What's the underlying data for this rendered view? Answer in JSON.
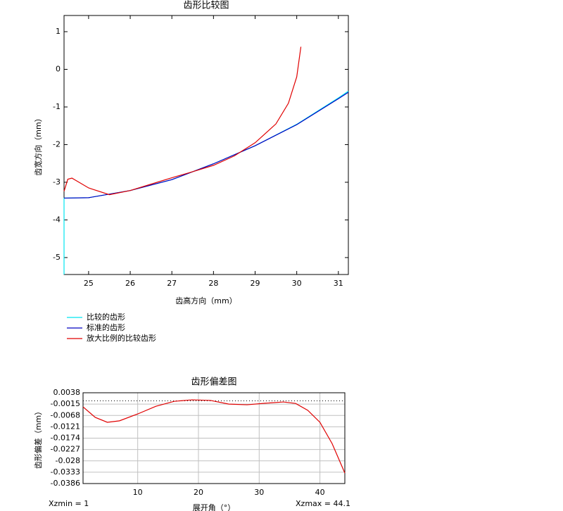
{
  "chart_data": [
    {
      "type": "line",
      "title": "齿形比较图",
      "x_label": "齿高方向（mm）",
      "y_label": "齿宽方向（mm）",
      "xlim": [
        24.41,
        31.24
      ],
      "ylim": [
        -5.45,
        1.43
      ],
      "xticks": [
        25,
        26,
        27,
        28,
        29,
        30,
        31
      ],
      "yticks": [
        -5,
        -4,
        -3,
        -2,
        -1,
        0,
        1
      ],
      "grid": false,
      "legend": "below",
      "series": [
        {
          "name": "比较的齿形",
          "color": "#00e5f0",
          "x": [
            24.41,
            24.41,
            25,
            26,
            27,
            28,
            29,
            30,
            31,
            31.24
          ],
          "values": [
            -5.45,
            -3.42,
            -3.41,
            -3.22,
            -2.93,
            -2.51,
            -2.03,
            -1.46,
            -0.76,
            -0.58
          ]
        },
        {
          "name": "标准的齿形",
          "color": "#0000c0",
          "x": [
            24.41,
            25,
            26,
            27,
            28,
            29,
            30,
            31,
            31.24
          ],
          "values": [
            -3.42,
            -3.41,
            -3.22,
            -2.93,
            -2.51,
            -2.03,
            -1.47,
            -0.78,
            -0.61
          ]
        },
        {
          "name": "放大比例的比较齿形",
          "color": "#e00000",
          "x": [
            24.41,
            24.5,
            24.6,
            24.8,
            25,
            25.5,
            26,
            26.5,
            27,
            27.5,
            28,
            28.5,
            29,
            29.5,
            29.8,
            30,
            30.1
          ],
          "values": [
            -3.24,
            -2.92,
            -2.89,
            -3.02,
            -3.15,
            -3.33,
            -3.22,
            -3.05,
            -2.88,
            -2.72,
            -2.55,
            -2.3,
            -1.95,
            -1.45,
            -0.9,
            -0.2,
            0.6
          ]
        }
      ]
    },
    {
      "type": "line",
      "title": "齿形偏差图",
      "x_label": "展开角（°）",
      "y_label": "齿形偏差（mm）",
      "xlim": [
        1,
        44.1
      ],
      "ylim": [
        -0.0386,
        0.0038
      ],
      "xticks": [
        10,
        20,
        30,
        40
      ],
      "yticks": [
        -0.0386,
        -0.0333,
        -0.028,
        -0.0227,
        -0.0174,
        -0.0121,
        -0.0068,
        -0.0015,
        0.0038
      ],
      "grid": true,
      "annotations": [
        "Xzmin = 1",
        "Xzmax = 44.1"
      ],
      "series": [
        {
          "color": "#e00000",
          "x": [
            1,
            3,
            5,
            7,
            10,
            13,
            16,
            19,
            22,
            25,
            28,
            31,
            34,
            36,
            38,
            40,
            42,
            44.1
          ],
          "values": [
            -0.0028,
            -0.0077,
            -0.01,
            -0.0093,
            -0.0061,
            -0.0025,
            -0.0002,
            0.0005,
            0.0002,
            -0.0015,
            -0.0018,
            -0.0011,
            -0.0005,
            -0.0012,
            -0.0044,
            -0.01,
            -0.0199,
            -0.0337
          ]
        }
      ]
    }
  ]
}
